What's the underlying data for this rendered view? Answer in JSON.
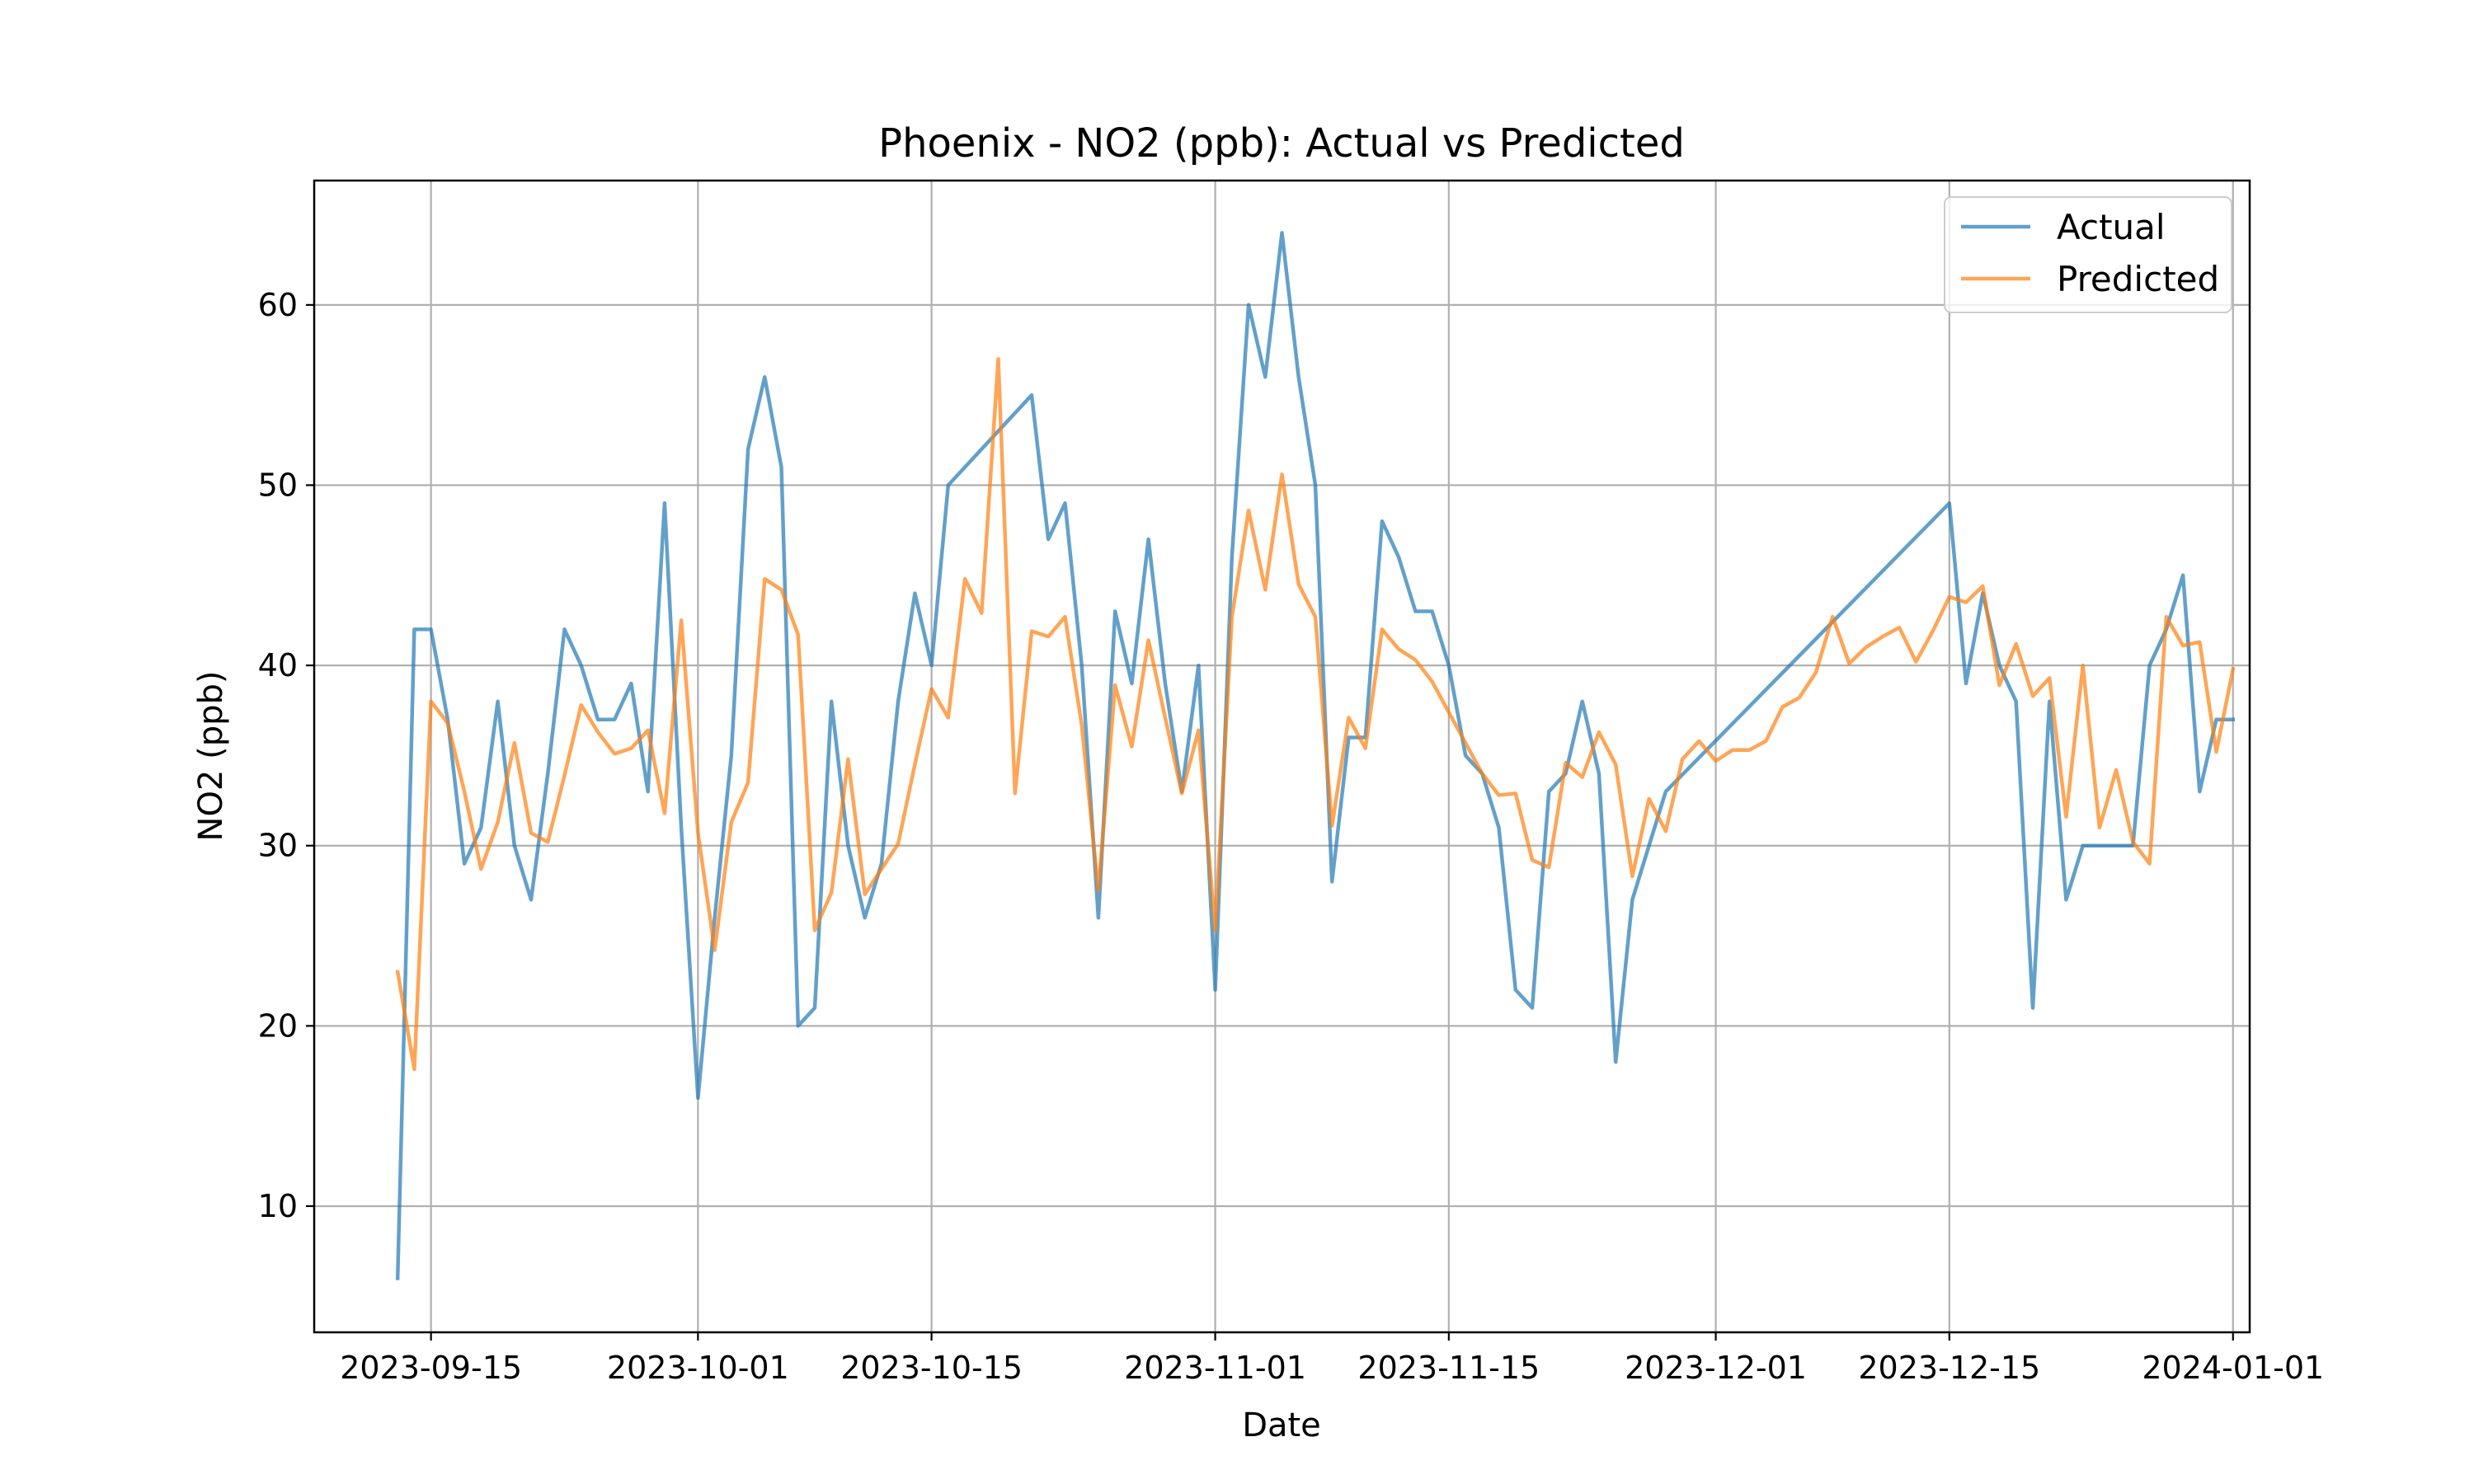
{
  "chart_data": {
    "type": "line",
    "title": "Phoenix - NO2 (ppb): Actual vs Predicted",
    "xlabel": "Date",
    "ylabel": "NO2 (ppb)",
    "xlim": [
      "2023-09-08",
      "2024-01-02"
    ],
    "ylim": [
      3.0,
      66.9
    ],
    "xticks": [
      "2023-09-15",
      "2023-10-01",
      "2023-10-15",
      "2023-11-01",
      "2023-11-15",
      "2023-12-01",
      "2023-12-15",
      "2024-01-01"
    ],
    "yticks": [
      10,
      20,
      30,
      40,
      50,
      60
    ],
    "grid": true,
    "legend": "top-right",
    "series": [
      {
        "name": "Actual",
        "color": "#1f77b4",
        "points": [
          [
            "2023-09-13",
            6
          ],
          [
            "2023-09-14",
            42
          ],
          [
            "2023-09-15",
            42
          ],
          [
            "2023-09-16",
            37
          ],
          [
            "2023-09-17",
            29
          ],
          [
            "2023-09-18",
            31
          ],
          [
            "2023-09-19",
            38
          ],
          [
            "2023-09-20",
            30
          ],
          [
            "2023-09-21",
            27
          ],
          [
            "2023-09-22",
            34
          ],
          [
            "2023-09-23",
            42
          ],
          [
            "2023-09-24",
            40
          ],
          [
            "2023-09-25",
            37
          ],
          [
            "2023-09-26",
            37
          ],
          [
            "2023-09-27",
            39
          ],
          [
            "2023-09-28",
            33
          ],
          [
            "2023-09-29",
            49
          ],
          [
            "2023-09-30",
            31
          ],
          [
            "2023-10-01",
            16
          ],
          [
            "2023-10-02",
            26
          ],
          [
            "2023-10-03",
            35
          ],
          [
            "2023-10-04",
            52
          ],
          [
            "2023-10-05",
            56
          ],
          [
            "2023-10-06",
            51
          ],
          [
            "2023-10-07",
            20
          ],
          [
            "2023-10-08",
            21
          ],
          [
            "2023-10-09",
            38
          ],
          [
            "2023-10-10",
            30
          ],
          [
            "2023-10-11",
            26
          ],
          [
            "2023-10-12",
            29
          ],
          [
            "2023-10-13",
            38
          ],
          [
            "2023-10-14",
            44
          ],
          [
            "2023-10-15",
            40
          ],
          [
            "2023-10-16",
            50
          ],
          [
            "2023-10-20",
            54
          ],
          [
            "2023-10-21",
            55
          ],
          [
            "2023-10-22",
            47
          ],
          [
            "2023-10-23",
            49
          ],
          [
            "2023-10-24",
            40
          ],
          [
            "2023-10-25",
            26
          ],
          [
            "2023-10-26",
            43
          ],
          [
            "2023-10-27",
            39
          ],
          [
            "2023-10-28",
            47
          ],
          [
            "2023-10-29",
            39
          ],
          [
            "2023-10-30",
            33
          ],
          [
            "2023-10-31",
            40
          ],
          [
            "2023-11-01",
            22
          ],
          [
            "2023-11-02",
            46
          ],
          [
            "2023-11-03",
            60
          ],
          [
            "2023-11-04",
            56
          ],
          [
            "2023-11-05",
            64
          ],
          [
            "2023-11-06",
            56
          ],
          [
            "2023-11-07",
            50
          ],
          [
            "2023-11-08",
            28
          ],
          [
            "2023-11-09",
            36
          ],
          [
            "2023-11-10",
            36
          ],
          [
            "2023-11-11",
            48
          ],
          [
            "2023-11-12",
            46
          ],
          [
            "2023-11-13",
            43
          ],
          [
            "2023-11-14",
            43
          ],
          [
            "2023-11-15",
            40
          ],
          [
            "2023-11-16",
            35
          ],
          [
            "2023-11-17",
            34
          ],
          [
            "2023-11-18",
            31
          ],
          [
            "2023-11-19",
            22
          ],
          [
            "2023-11-20",
            21
          ],
          [
            "2023-11-21",
            33
          ],
          [
            "2023-11-22",
            34
          ],
          [
            "2023-11-23",
            38
          ],
          [
            "2023-11-24",
            34
          ],
          [
            "2023-11-25",
            18
          ],
          [
            "2023-11-26",
            27
          ],
          [
            "2023-11-27",
            30
          ],
          [
            "2023-11-28",
            33
          ],
          [
            "2023-12-15",
            49
          ],
          [
            "2023-12-16",
            39
          ],
          [
            "2023-12-17",
            44
          ],
          [
            "2023-12-18",
            40
          ],
          [
            "2023-12-19",
            38
          ],
          [
            "2023-12-20",
            21
          ],
          [
            "2023-12-21",
            38
          ],
          [
            "2023-12-22",
            27
          ],
          [
            "2023-12-23",
            30
          ],
          [
            "2023-12-24",
            30
          ],
          [
            "2023-12-25",
            30
          ],
          [
            "2023-12-26",
            30
          ],
          [
            "2023-12-27",
            40
          ],
          [
            "2023-12-28",
            42
          ],
          [
            "2023-12-29",
            45
          ],
          [
            "2023-12-30",
            33
          ],
          [
            "2023-12-31",
            37
          ],
          [
            "2024-01-01",
            37
          ]
        ]
      },
      {
        "name": "Predicted",
        "color": "#ff7f0e",
        "points": [
          [
            "2023-09-13",
            23
          ],
          [
            "2023-09-14",
            17.6
          ],
          [
            "2023-09-15",
            38
          ],
          [
            "2023-09-16",
            36.8
          ],
          [
            "2023-09-17",
            33
          ],
          [
            "2023-09-18",
            28.7
          ],
          [
            "2023-09-19",
            31.3
          ],
          [
            "2023-09-20",
            35.7
          ],
          [
            "2023-09-21",
            30.7
          ],
          [
            "2023-09-22",
            30.2
          ],
          [
            "2023-09-23",
            33.9
          ],
          [
            "2023-09-24",
            37.8
          ],
          [
            "2023-09-25",
            36.3
          ],
          [
            "2023-09-26",
            35.1
          ],
          [
            "2023-09-27",
            35.4
          ],
          [
            "2023-09-28",
            36.4
          ],
          [
            "2023-09-29",
            31.8
          ],
          [
            "2023-09-30",
            42.5
          ],
          [
            "2023-10-01",
            30.7
          ],
          [
            "2023-10-02",
            24.2
          ],
          [
            "2023-10-03",
            31.3
          ],
          [
            "2023-10-04",
            33.5
          ],
          [
            "2023-10-05",
            44.8
          ],
          [
            "2023-10-06",
            44.2
          ],
          [
            "2023-10-07",
            41.7
          ],
          [
            "2023-10-08",
            25.3
          ],
          [
            "2023-10-09",
            27.4
          ],
          [
            "2023-10-10",
            34.8
          ],
          [
            "2023-10-11",
            27.3
          ],
          [
            "2023-10-12",
            28.7
          ],
          [
            "2023-10-13",
            30.1
          ],
          [
            "2023-10-14",
            34.5
          ],
          [
            "2023-10-15",
            38.7
          ],
          [
            "2023-10-16",
            37.1
          ],
          [
            "2023-10-17",
            44.8
          ],
          [
            "2023-10-18",
            42.9
          ],
          [
            "2023-10-19",
            57
          ],
          [
            "2023-10-20",
            32.9
          ],
          [
            "2023-10-21",
            41.9
          ],
          [
            "2023-10-22",
            41.6
          ],
          [
            "2023-10-23",
            42.7
          ],
          [
            "2023-10-24",
            36.7
          ],
          [
            "2023-10-25",
            27.5
          ],
          [
            "2023-10-26",
            38.9
          ],
          [
            "2023-10-27",
            35.5
          ],
          [
            "2023-10-28",
            41.4
          ],
          [
            "2023-10-29",
            37.1
          ],
          [
            "2023-10-30",
            32.9
          ],
          [
            "2023-10-31",
            36.4
          ],
          [
            "2023-11-01",
            25.3
          ],
          [
            "2023-11-02",
            42.7
          ],
          [
            "2023-11-03",
            48.6
          ],
          [
            "2023-11-04",
            44.2
          ],
          [
            "2023-11-05",
            50.6
          ],
          [
            "2023-11-06",
            44.5
          ],
          [
            "2023-11-07",
            42.7
          ],
          [
            "2023-11-08",
            31.1
          ],
          [
            "2023-11-09",
            37.1
          ],
          [
            "2023-11-10",
            35.4
          ],
          [
            "2023-11-11",
            42
          ],
          [
            "2023-11-12",
            40.9
          ],
          [
            "2023-11-13",
            40.3
          ],
          [
            "2023-11-14",
            39.1
          ],
          [
            "2023-11-15",
            37.4
          ],
          [
            "2023-11-16",
            35.7
          ],
          [
            "2023-11-17",
            34
          ],
          [
            "2023-11-18",
            32.8
          ],
          [
            "2023-11-19",
            32.9
          ],
          [
            "2023-11-20",
            29.2
          ],
          [
            "2023-11-21",
            28.8
          ],
          [
            "2023-11-22",
            34.6
          ],
          [
            "2023-11-23",
            33.8
          ],
          [
            "2023-11-24",
            36.3
          ],
          [
            "2023-11-25",
            34.5
          ],
          [
            "2023-11-26",
            28.3
          ],
          [
            "2023-11-27",
            32.6
          ],
          [
            "2023-11-28",
            30.8
          ],
          [
            "2023-11-29",
            34.8
          ],
          [
            "2023-11-30",
            35.8
          ],
          [
            "2023-12-01",
            34.7
          ],
          [
            "2023-12-02",
            35.3
          ],
          [
            "2023-12-03",
            35.3
          ],
          [
            "2023-12-04",
            35.8
          ],
          [
            "2023-12-05",
            37.7
          ],
          [
            "2023-12-06",
            38.2
          ],
          [
            "2023-12-07",
            39.6
          ],
          [
            "2023-12-08",
            42.7
          ],
          [
            "2023-12-09",
            40.1
          ],
          [
            "2023-12-10",
            41
          ],
          [
            "2023-12-11",
            41.6
          ],
          [
            "2023-12-12",
            42.1
          ],
          [
            "2023-12-13",
            40.2
          ],
          [
            "2023-12-14",
            41.9
          ],
          [
            "2023-12-15",
            43.8
          ],
          [
            "2023-12-16",
            43.5
          ],
          [
            "2023-12-17",
            44.4
          ],
          [
            "2023-12-18",
            38.9
          ],
          [
            "2023-12-19",
            41.2
          ],
          [
            "2023-12-20",
            38.3
          ],
          [
            "2023-12-21",
            39.3
          ],
          [
            "2023-12-22",
            31.6
          ],
          [
            "2023-12-23",
            40
          ],
          [
            "2023-12-24",
            31
          ],
          [
            "2023-12-25",
            34.2
          ],
          [
            "2023-12-26",
            30.2
          ],
          [
            "2023-12-27",
            29
          ],
          [
            "2023-12-28",
            42.7
          ],
          [
            "2023-12-29",
            41.1
          ],
          [
            "2023-12-30",
            41.3
          ],
          [
            "2023-12-31",
            35.2
          ],
          [
            "2024-01-01",
            39.8
          ]
        ]
      }
    ]
  }
}
